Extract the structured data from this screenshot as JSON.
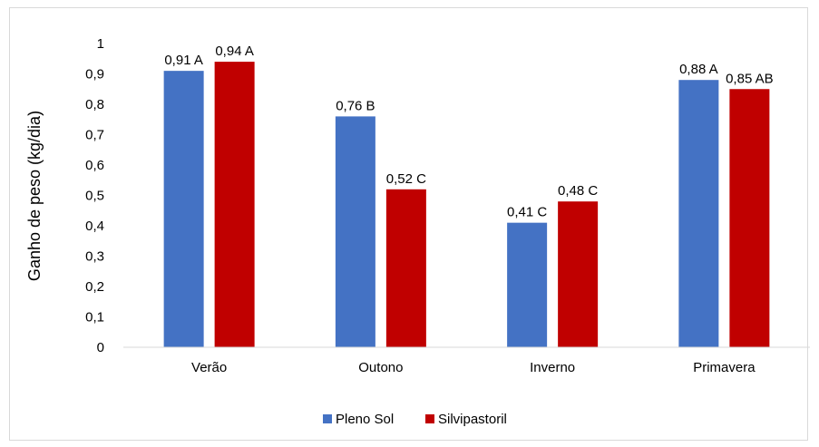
{
  "chart_data": {
    "type": "bar",
    "title": "",
    "xlabel": "",
    "ylabel": "Ganho de peso (kg/dia)",
    "ylim": [
      0,
      1
    ],
    "yticks": [
      "0",
      "0,1",
      "0,2",
      "0,3",
      "0,4",
      "0,5",
      "0,6",
      "0,7",
      "0,8",
      "0,9",
      "1"
    ],
    "grid": false,
    "legend_position": "bottom",
    "categories": [
      "Verão",
      "Outono",
      "Inverno",
      "Primavera"
    ],
    "series": [
      {
        "name": "Pleno Sol",
        "color": "#4472c4",
        "values": [
          0.91,
          0.76,
          0.41,
          0.88
        ],
        "labels": [
          "0,91 A",
          "0,76 B",
          "0,41 C",
          "0,88 A"
        ]
      },
      {
        "name": "Silvipastoril",
        "color": "#c00000",
        "values": [
          0.94,
          0.52,
          0.48,
          0.85
        ],
        "labels": [
          "0,94 A",
          "0,52 C",
          "0,48 C",
          "0,85 AB"
        ]
      }
    ]
  }
}
